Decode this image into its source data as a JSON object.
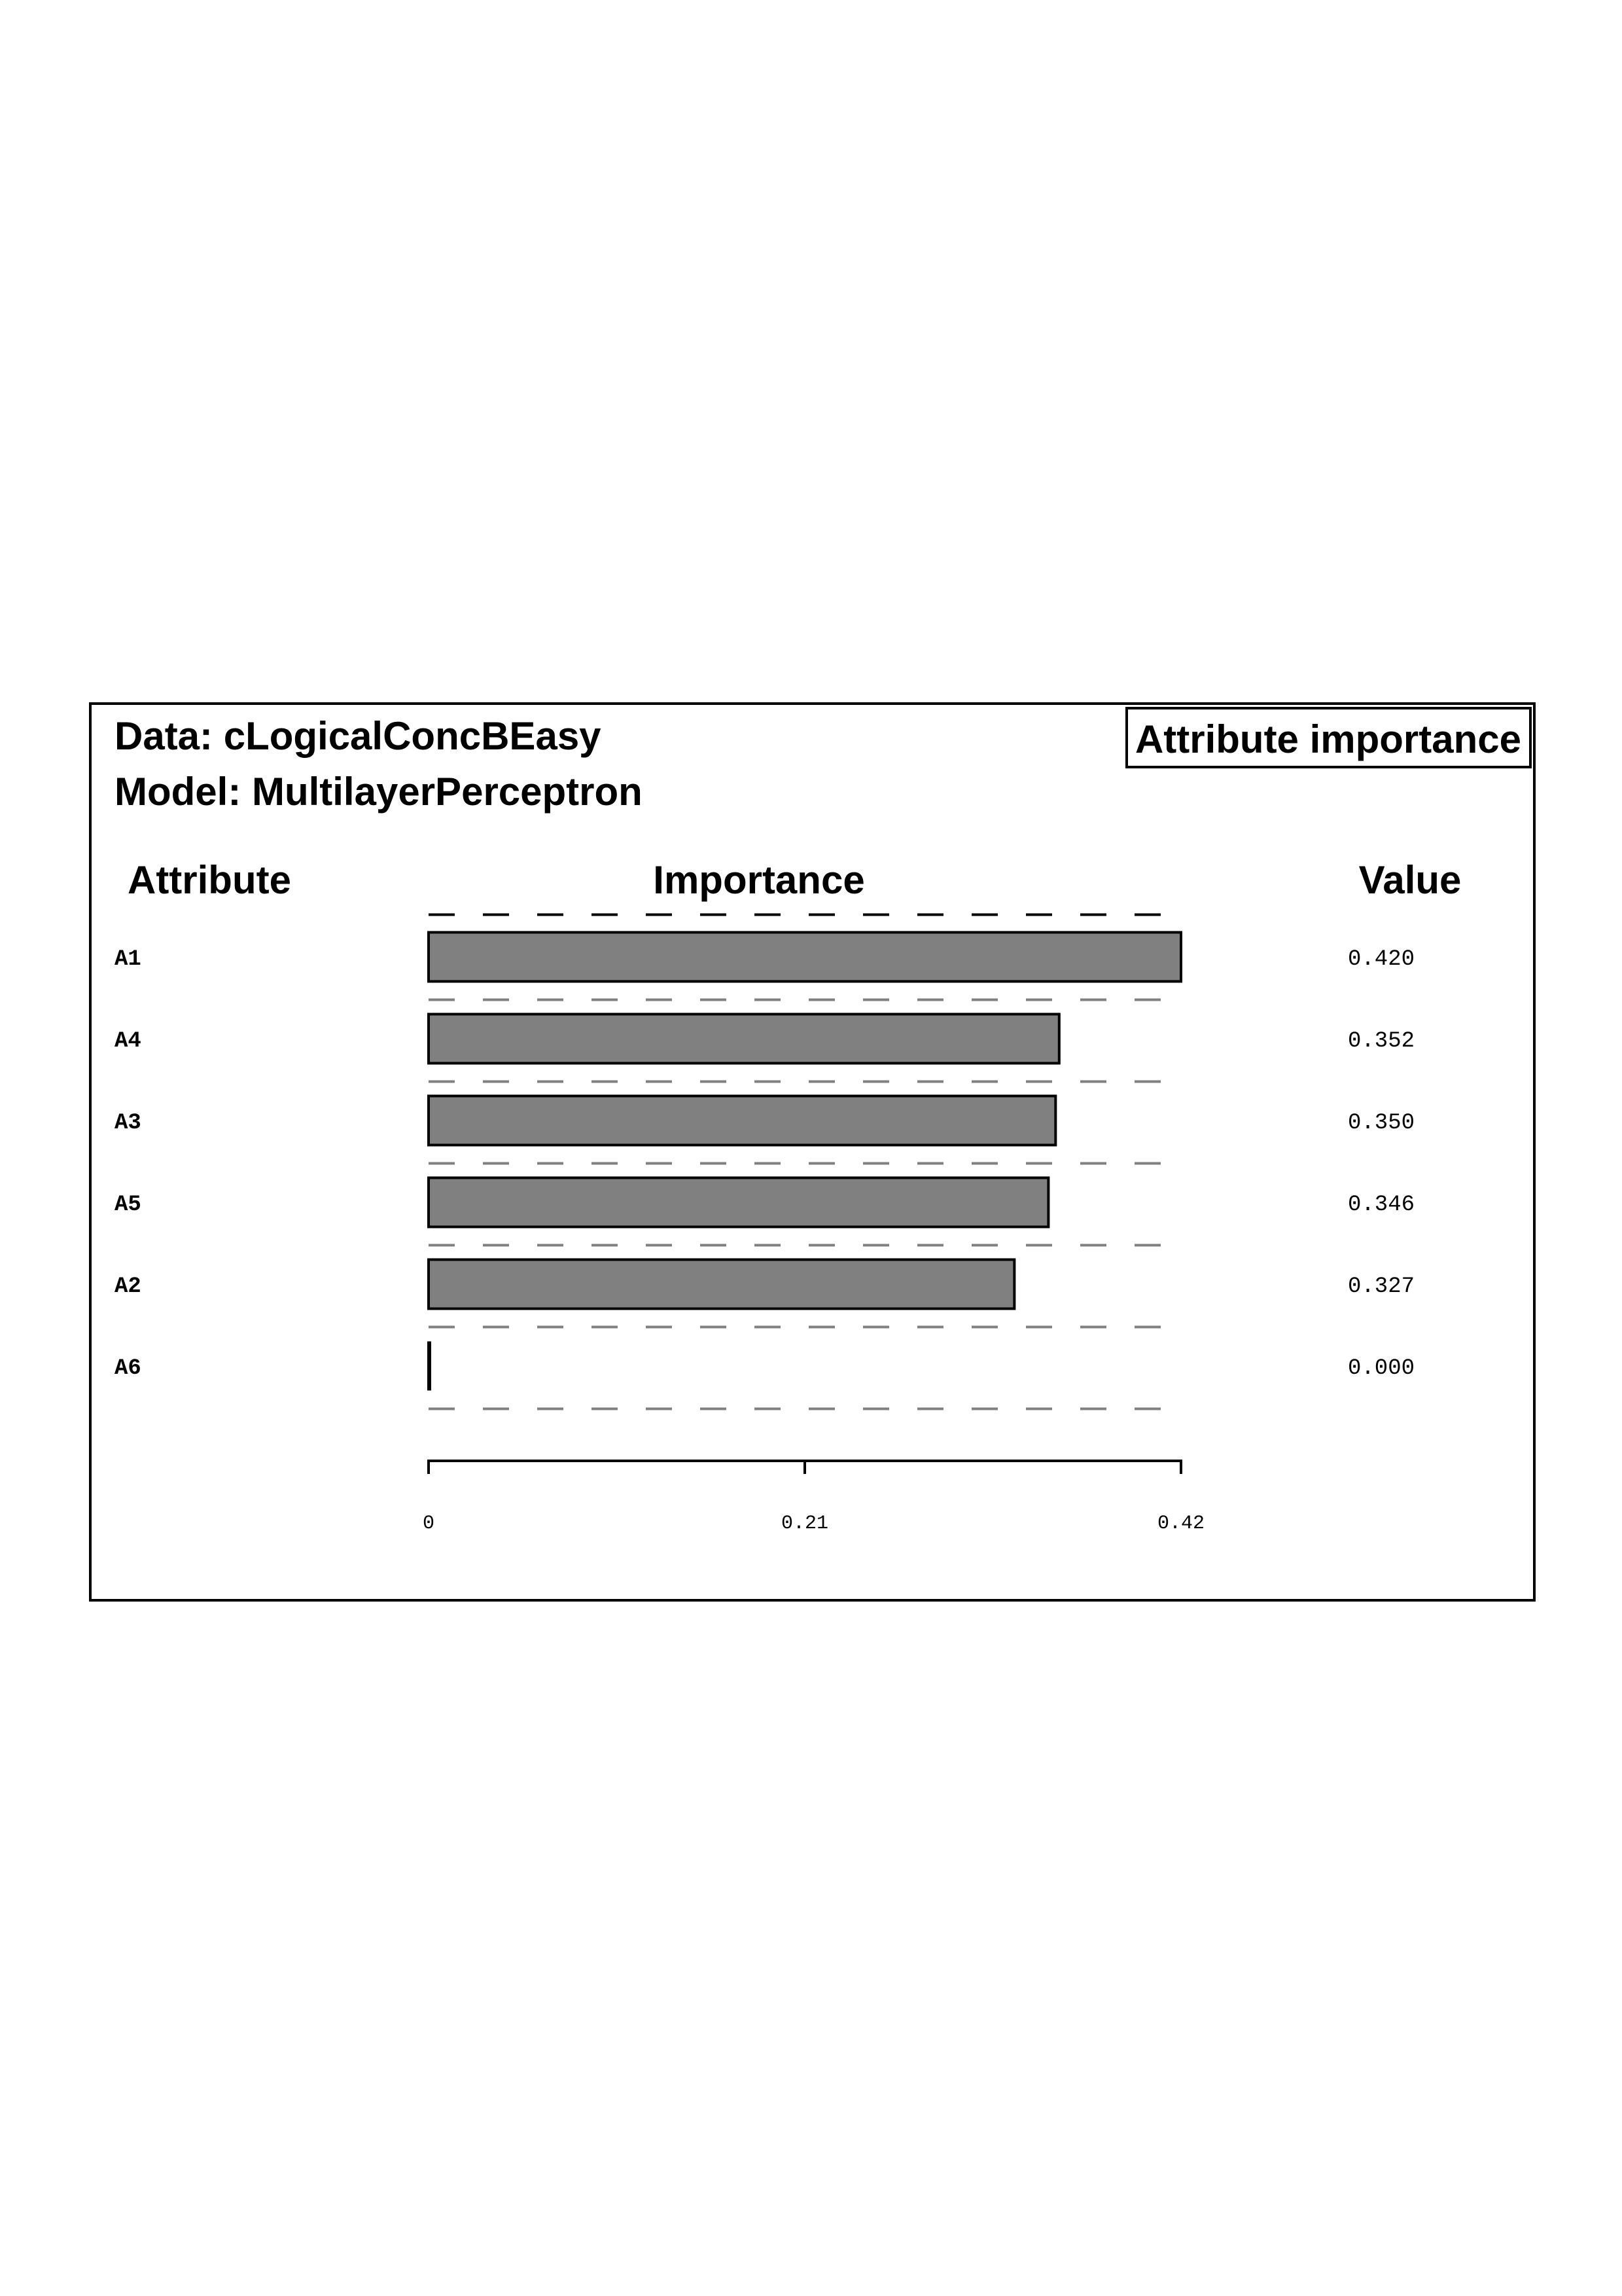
{
  "data_label": "Data: cLogicalConcBEasy",
  "model_label": "Model: MultilayerPerceptron",
  "badge": "Attribute importance",
  "headers": {
    "attribute": "Attribute",
    "importance": "Importance",
    "value": "Value"
  },
  "colors": {
    "bar_fill": "#808080",
    "bar_stroke": "#000000",
    "grid_dash": "#808080",
    "frame": "#000000"
  },
  "chart_data": {
    "type": "bar",
    "orientation": "horizontal",
    "categories": [
      "A1",
      "A4",
      "A3",
      "A5",
      "A2",
      "A6"
    ],
    "values": [
      0.42,
      0.352,
      0.35,
      0.346,
      0.327,
      0.0
    ],
    "value_labels": [
      "0.420",
      "0.352",
      "0.350",
      "0.346",
      "0.327",
      "0.000"
    ],
    "xlim": [
      0,
      0.42
    ],
    "ticks": [
      0,
      0.21,
      0.42
    ],
    "tick_labels": [
      "0",
      "0.21",
      "0.42"
    ],
    "grid": "dashed row separators"
  }
}
